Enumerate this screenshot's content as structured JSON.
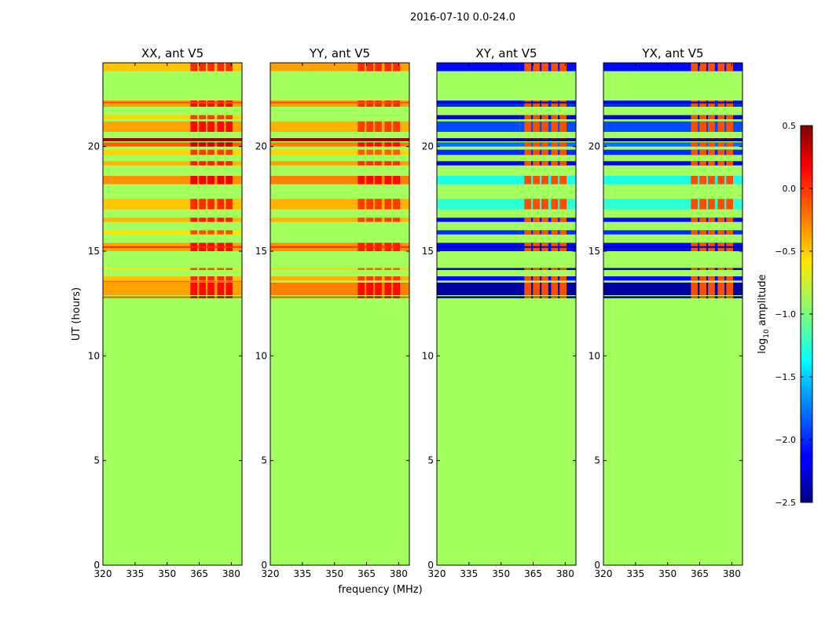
{
  "chart_data": {
    "type": "heatmap",
    "suptitle": "2016-07-10 0.0-24.0",
    "xlabel": "frequency (MHz)",
    "ylabel": "UT (hours)",
    "xlim": [
      320,
      385
    ],
    "ylim": [
      0,
      24
    ],
    "xticks": [
      "320",
      "335",
      "350",
      "365",
      "380"
    ],
    "yticks": [
      "0",
      "5",
      "10",
      "15",
      "20"
    ],
    "colorbar": {
      "label": "log10 amplitude",
      "label_main": "log",
      "label_sub": "10",
      "label_rest": " amplitude",
      "range": [
        -2.5,
        0.5
      ],
      "ticks": [
        "0.5",
        "0.0",
        "−0.5",
        "−1.0",
        "−1.5",
        "−2.0",
        "−2.5"
      ],
      "colormap": "jet"
    },
    "background_value": -0.9,
    "active_range_hours": [
      12.7,
      24.0
    ],
    "rfi_channels_mhz": [
      362.5,
      366.5,
      370.5,
      375.0,
      379.0
    ],
    "panels": [
      {
        "title": "XX, ant V5",
        "bands": [
          {
            "t": [
              23.6,
              24.0
            ],
            "v": -0.45
          },
          {
            "t": [
              21.9,
              22.2
            ],
            "v": -0.35
          },
          {
            "t": [
              21.3,
              21.5
            ],
            "v": -0.5
          },
          {
            "t": [
              20.7,
              21.2
            ],
            "v": -0.35
          },
          {
            "t": [
              20.25,
              20.4
            ],
            "v": 0.45
          },
          {
            "t": [
              20.0,
              20.2
            ],
            "v": -0.15
          },
          {
            "t": [
              19.6,
              19.85
            ],
            "v": -0.5
          },
          {
            "t": [
              19.1,
              19.3
            ],
            "v": -0.4
          },
          {
            "t": [
              18.2,
              18.6
            ],
            "v": -0.3
          },
          {
            "t": [
              17.0,
              17.5
            ],
            "v": -0.45
          },
          {
            "t": [
              16.4,
              16.6
            ],
            "v": -0.4
          },
          {
            "t": [
              15.8,
              16.0
            ],
            "v": -0.55
          },
          {
            "t": [
              15.0,
              15.4
            ],
            "v": -0.35
          },
          {
            "t": [
              14.1,
              14.2
            ],
            "v": -0.55
          },
          {
            "t": [
              13.6,
              13.8
            ],
            "v": -0.45
          },
          {
            "t": [
              12.9,
              13.5
            ],
            "v": -0.35
          },
          {
            "t": [
              12.75,
              12.85
            ],
            "v": -0.2
          }
        ],
        "lines": [
          {
            "t": 22.1,
            "v": -0.1
          },
          {
            "t": 20.3,
            "v": 0.3
          },
          {
            "t": 15.2,
            "v": 0.0
          },
          {
            "t": 13.55,
            "v": -0.2
          }
        ],
        "rfi_boost": 0.45
      },
      {
        "title": "YY, ant V5",
        "bands": [
          {
            "t": [
              23.6,
              24.0
            ],
            "v": -0.35
          },
          {
            "t": [
              21.9,
              22.2
            ],
            "v": -0.35
          },
          {
            "t": [
              20.7,
              21.2
            ],
            "v": -0.4
          },
          {
            "t": [
              20.25,
              20.4
            ],
            "v": 0.45
          },
          {
            "t": [
              20.0,
              20.2
            ],
            "v": -0.25
          },
          {
            "t": [
              19.6,
              19.85
            ],
            "v": -0.5
          },
          {
            "t": [
              19.1,
              19.3
            ],
            "v": -0.35
          },
          {
            "t": [
              18.2,
              18.6
            ],
            "v": -0.25
          },
          {
            "t": [
              17.0,
              17.5
            ],
            "v": -0.4
          },
          {
            "t": [
              16.4,
              16.6
            ],
            "v": -0.4
          },
          {
            "t": [
              15.0,
              15.4
            ],
            "v": -0.3
          },
          {
            "t": [
              14.1,
              14.2
            ],
            "v": -0.5
          },
          {
            "t": [
              13.6,
              13.8
            ],
            "v": -0.4
          },
          {
            "t": [
              12.9,
              13.5
            ],
            "v": -0.25
          },
          {
            "t": [
              12.75,
              12.85
            ],
            "v": -0.2
          }
        ],
        "lines": [
          {
            "t": 22.1,
            "v": -0.1
          },
          {
            "t": 20.3,
            "v": 0.3
          },
          {
            "t": 15.2,
            "v": 0.0
          }
        ],
        "rfi_boost": 0.35
      },
      {
        "title": "XY, ant V5",
        "bands": [
          {
            "t": [
              23.6,
              24.0
            ],
            "v": -2.1
          },
          {
            "t": [
              21.9,
              22.2
            ],
            "v": -2.0
          },
          {
            "t": [
              21.3,
              21.5
            ],
            "v": -2.2
          },
          {
            "t": [
              20.7,
              21.2
            ],
            "v": -1.9
          },
          {
            "t": [
              20.25,
              20.4
            ],
            "v": -2.3
          },
          {
            "t": [
              20.0,
              20.2
            ],
            "v": -1.8
          },
          {
            "t": [
              19.6,
              19.85
            ],
            "v": -2.0
          },
          {
            "t": [
              19.1,
              19.3
            ],
            "v": -2.2
          },
          {
            "t": [
              18.2,
              18.6
            ],
            "v": -1.3
          },
          {
            "t": [
              17.0,
              17.5
            ],
            "v": -1.25
          },
          {
            "t": [
              16.4,
              16.6
            ],
            "v": -2.1
          },
          {
            "t": [
              15.8,
              16.0
            ],
            "v": -2.0
          },
          {
            "t": [
              15.0,
              15.4
            ],
            "v": -2.1
          },
          {
            "t": [
              14.1,
              14.2
            ],
            "v": -2.2
          },
          {
            "t": [
              13.6,
              13.8
            ],
            "v": -2.1
          },
          {
            "t": [
              12.9,
              13.5
            ],
            "v": -2.4
          },
          {
            "t": [
              12.75,
              12.85
            ],
            "v": -2.2
          }
        ],
        "lines": [
          {
            "t": 22.1,
            "v": -2.4
          },
          {
            "t": 20.3,
            "v": -2.4
          },
          {
            "t": 15.2,
            "v": -2.4
          }
        ],
        "rfi_value": -0.1,
        "rfi_hot": [
          20.2,
          20.4
        ]
      },
      {
        "title": "YX, ant V5",
        "bands": [
          {
            "t": [
              23.6,
              24.0
            ],
            "v": -2.1
          },
          {
            "t": [
              21.9,
              22.2
            ],
            "v": -2.0
          },
          {
            "t": [
              21.3,
              21.5
            ],
            "v": -2.2
          },
          {
            "t": [
              20.7,
              21.2
            ],
            "v": -1.9
          },
          {
            "t": [
              20.25,
              20.4
            ],
            "v": -2.3
          },
          {
            "t": [
              20.0,
              20.2
            ],
            "v": -1.8
          },
          {
            "t": [
              19.6,
              19.85
            ],
            "v": -2.0
          },
          {
            "t": [
              19.1,
              19.3
            ],
            "v": -2.2
          },
          {
            "t": [
              18.2,
              18.6
            ],
            "v": -1.3
          },
          {
            "t": [
              17.0,
              17.5
            ],
            "v": -1.25
          },
          {
            "t": [
              16.4,
              16.6
            ],
            "v": -2.1
          },
          {
            "t": [
              15.8,
              16.0
            ],
            "v": -2.0
          },
          {
            "t": [
              15.0,
              15.4
            ],
            "v": -2.1
          },
          {
            "t": [
              14.1,
              14.2
            ],
            "v": -2.2
          },
          {
            "t": [
              13.6,
              13.8
            ],
            "v": -2.1
          },
          {
            "t": [
              12.9,
              13.5
            ],
            "v": -2.4
          },
          {
            "t": [
              12.75,
              12.85
            ],
            "v": -2.2
          }
        ],
        "lines": [
          {
            "t": 22.1,
            "v": -2.4
          },
          {
            "t": 20.3,
            "v": -2.4
          },
          {
            "t": 15.2,
            "v": -2.4
          }
        ],
        "rfi_value": -0.1,
        "rfi_hot": [
          20.2,
          20.4
        ]
      }
    ]
  }
}
